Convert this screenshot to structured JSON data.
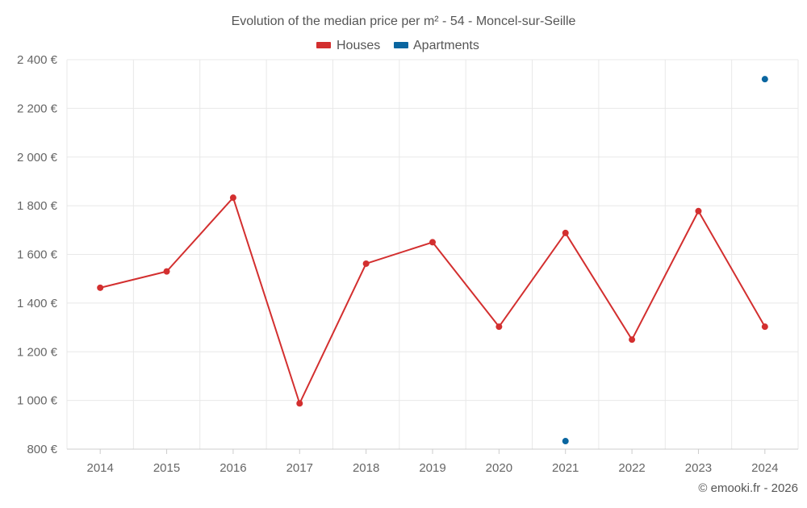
{
  "chart_data": {
    "type": "line",
    "title": "Evolution of the median price per m² - 54 - Moncel-sur-Seille",
    "categories": [
      "2014",
      "2015",
      "2016",
      "2017",
      "2018",
      "2019",
      "2020",
      "2021",
      "2022",
      "2023",
      "2024"
    ],
    "series": [
      {
        "name": "Houses",
        "color": "#d32f2f",
        "values": [
          1463,
          1530,
          1833,
          988,
          1562,
          1650,
          1303,
          1688,
          1250,
          1778,
          1303
        ]
      },
      {
        "name": "Apartments",
        "color": "#0a66a0",
        "values": [
          null,
          null,
          null,
          null,
          null,
          null,
          null,
          833,
          null,
          null,
          2320
        ]
      }
    ],
    "ylim": [
      800,
      2400
    ],
    "yticks": [
      800,
      1000,
      1200,
      1400,
      1600,
      1800,
      2000,
      2200,
      2400
    ],
    "ytick_labels": [
      "800 €",
      "1 000 €",
      "1 200 €",
      "1 400 €",
      "1 600 €",
      "1 800 €",
      "2 000 €",
      "2 200 €",
      "2 400 €"
    ],
    "legend_position": "top-center",
    "grid": true,
    "xlabel": "",
    "ylabel": ""
  },
  "credit": "© emooki.fr - 2026"
}
